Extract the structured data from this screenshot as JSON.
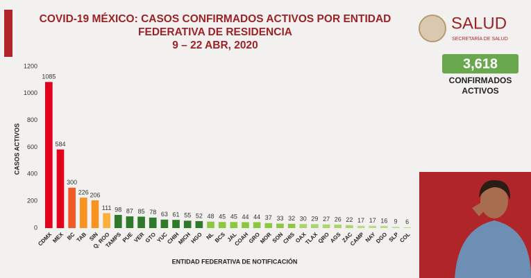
{
  "chart_data": {
    "type": "bar",
    "title_lines": [
      "COVID-19 MÉXICO: CASOS CONFIRMADOS ACTIVOS POR ENTIDAD",
      "FEDERATIVA DE RESIDENCIA",
      "9 – 22 ABR, 2020"
    ],
    "ylabel": "CASOS ACTIVOS",
    "xlabel": "ENTIDAD FEDERATIVA DE NOTIFICACIÓN",
    "categories": [
      "CDMX",
      "MEX",
      "BC",
      "TAB",
      "SIN",
      "Q. ROO",
      "TAMPS",
      "PUE",
      "VER",
      "GTO",
      "YUC",
      "CHIH",
      "MICH",
      "HGO",
      "NL",
      "BCS",
      "JAL",
      "COAH",
      "GRO",
      "MOR",
      "SON",
      "CHIS",
      "OAX",
      "TLAX",
      "QRO",
      "AGS",
      "ZAC",
      "CAMP",
      "NAY",
      "DGO",
      "SLP",
      "COL"
    ],
    "values": [
      1085,
      584,
      300,
      226,
      206,
      111,
      98,
      87,
      85,
      78,
      63,
      61,
      55,
      52,
      48,
      45,
      45,
      44,
      44,
      37,
      33,
      32,
      30,
      29,
      27,
      26,
      22,
      17,
      17,
      16,
      9,
      6
    ],
    "colors": [
      "#e3001b",
      "#e3001b",
      "#f15a24",
      "#f7931e",
      "#f7931e",
      "#fbb03b",
      "#2f7a2a",
      "#2f7a2a",
      "#2f7a2a",
      "#2f7a2a",
      "#2f7a2a",
      "#2f7a2a",
      "#2f7a2a",
      "#2f7a2a",
      "#8dc63f",
      "#8dc63f",
      "#8dc63f",
      "#8dc63f",
      "#8dc63f",
      "#8dc63f",
      "#8dc63f",
      "#8dc63f",
      "#a9d46f",
      "#a9d46f",
      "#a9d46f",
      "#a9d46f",
      "#a9d46f",
      "#b8dc85",
      "#b8dc85",
      "#b8dc85",
      "#b8dc85",
      "#b8dc85"
    ],
    "ylim": [
      0,
      1200
    ],
    "yticks": [
      0,
      200,
      400,
      600,
      800,
      1000,
      1200
    ],
    "grid": false
  },
  "header": {
    "brand": "SALUD",
    "brand_sub": "SECRETARÍA DE SALUD"
  },
  "badge": {
    "value": "3,618",
    "caption_lines": [
      "CONFIRMADOS",
      "ACTIVOS"
    ]
  }
}
